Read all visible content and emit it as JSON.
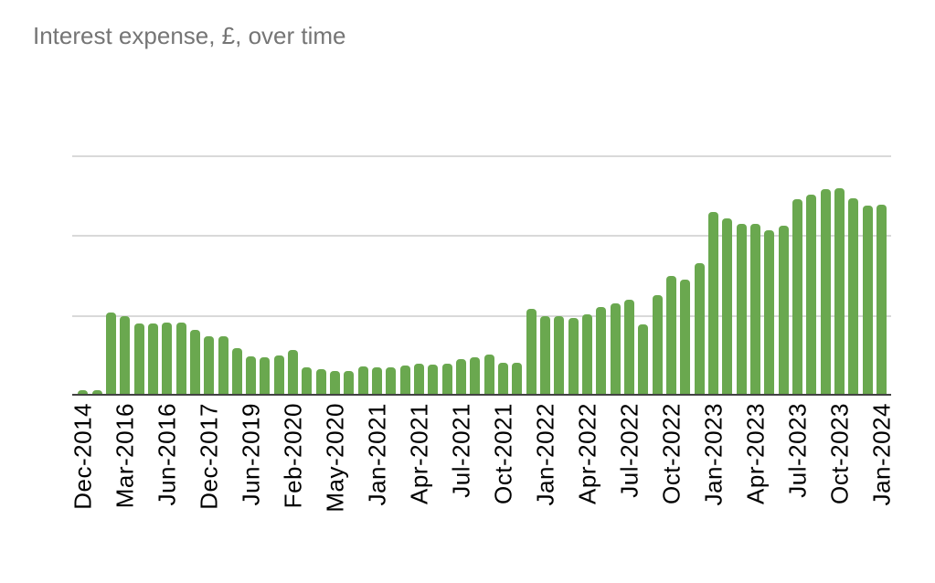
{
  "title": {
    "text": "Interest expense, £, over time"
  },
  "colors": {
    "bar": "#6aa84f",
    "gridline": "#d9d9d9",
    "axis": "#424242",
    "title_text": "#757575",
    "tick_text": "#000000",
    "background": "#ffffff"
  },
  "chart_data": {
    "type": "bar",
    "title": "Interest expense, £, over time",
    "xlabel": "",
    "ylabel": "",
    "legend": "none",
    "grid": true,
    "y_axis": {
      "min": 0,
      "max": 3,
      "gridline_values": [
        1,
        2,
        3
      ],
      "tick_labels_visible": false
    },
    "x_tick_every": 3,
    "x_tick_start_index": 0,
    "x_tick_labels": [
      "Dec-2014",
      "Mar-2016",
      "Jun-2016",
      "Dec-2017",
      "Jun-2019",
      "Feb-2020",
      "May-2020",
      "Jan-2021",
      "Apr-2021",
      "Jul-2021",
      "Oct-2021",
      "Jan-2022",
      "Apr-2022",
      "Jul-2022",
      "Oct-2022",
      "Jan-2023",
      "Apr-2023",
      "Jul-2023",
      "Oct-2023",
      "Jan-2024"
    ],
    "values": [
      0.07,
      0.07,
      1.04,
      1.0,
      0.9,
      0.9,
      0.92,
      0.92,
      0.83,
      0.75,
      0.75,
      0.6,
      0.49,
      0.48,
      0.5,
      0.57,
      0.35,
      0.33,
      0.31,
      0.31,
      0.37,
      0.35,
      0.36,
      0.38,
      0.4,
      0.39,
      0.4,
      0.46,
      0.48,
      0.51,
      0.41,
      0.41,
      1.09,
      1.0,
      1.0,
      0.97,
      1.02,
      1.11,
      1.16,
      1.2,
      0.89,
      1.26,
      1.5,
      1.46,
      1.66,
      2.3,
      2.22,
      2.15,
      2.15,
      2.07,
      2.13,
      2.46,
      2.52,
      2.59,
      2.6,
      2.47,
      2.38,
      2.39
    ]
  }
}
